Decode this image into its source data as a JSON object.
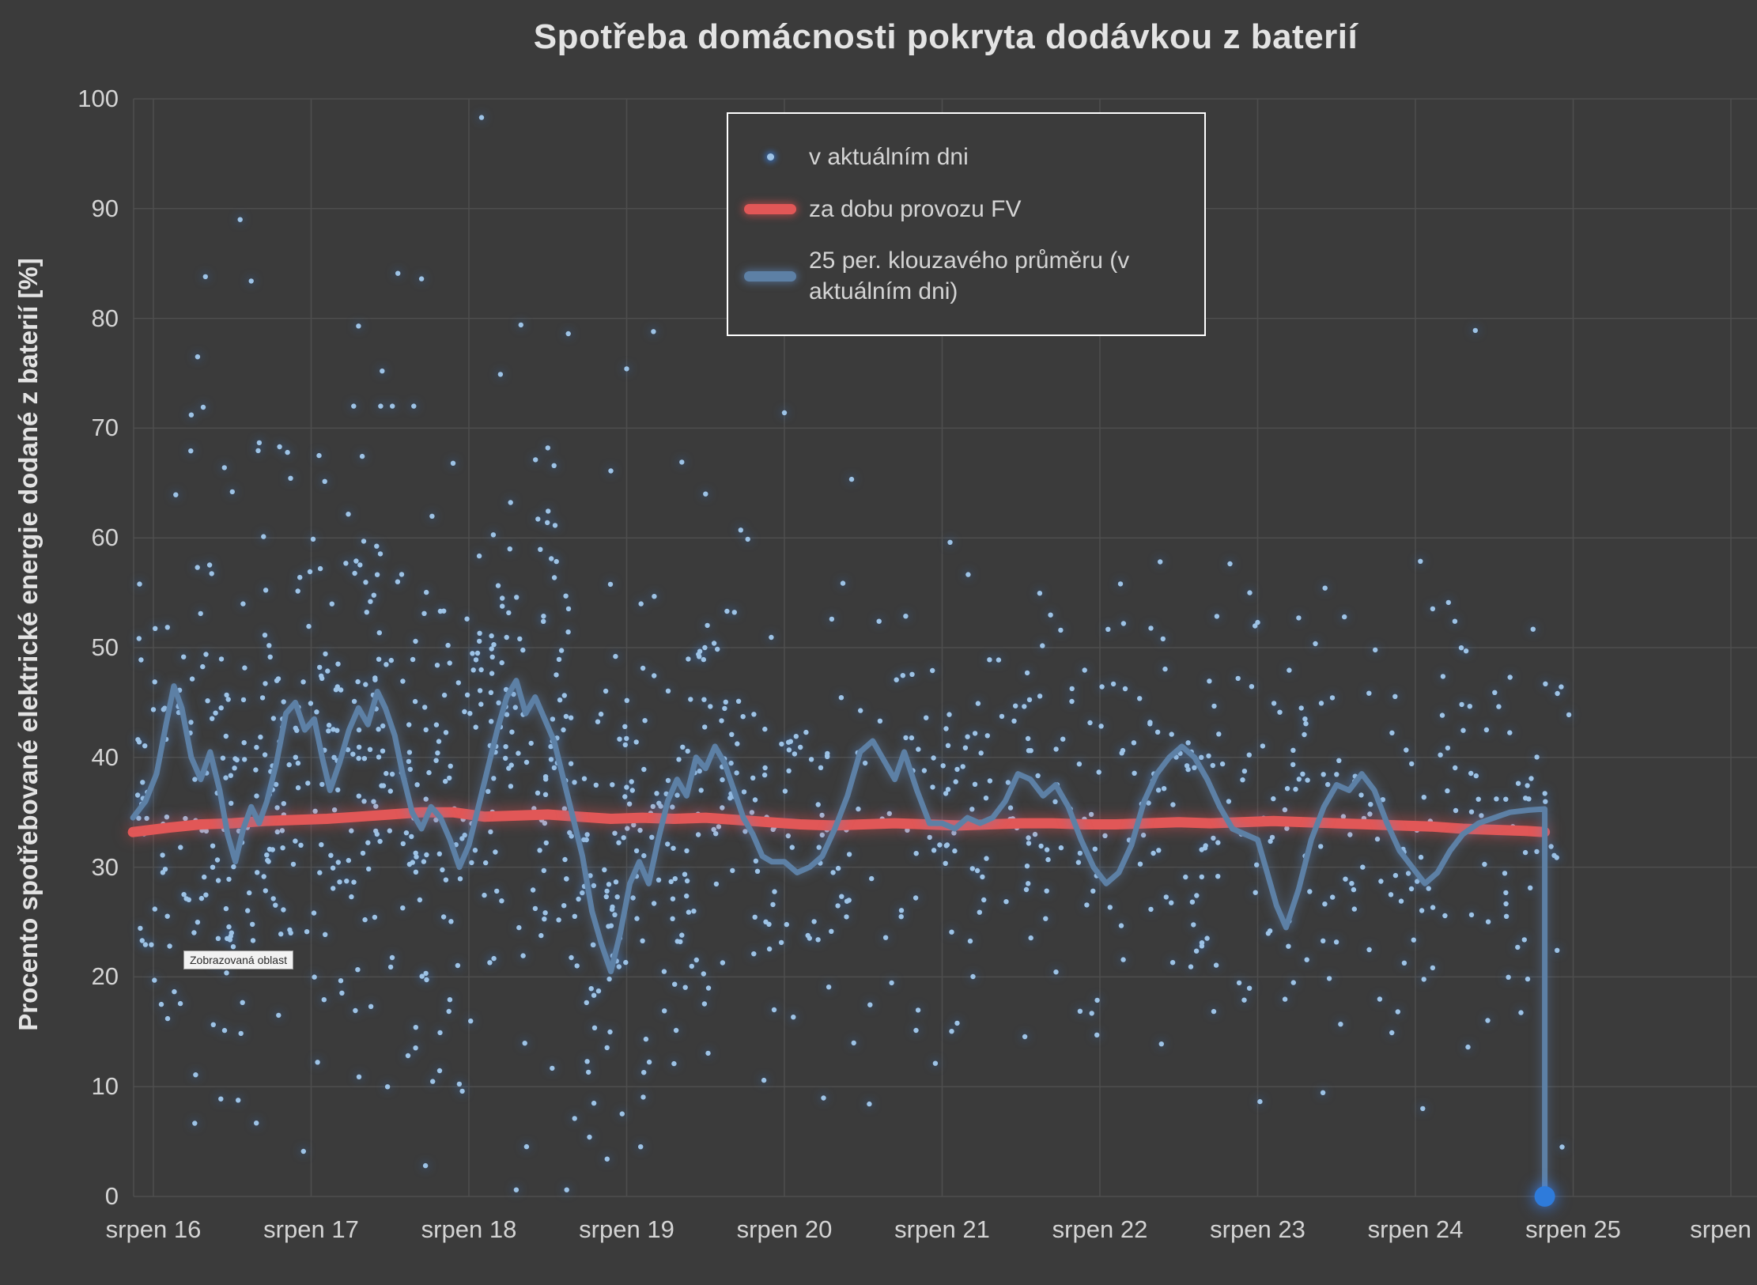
{
  "tooltip": {
    "label": "Zobrazovaná oblast"
  },
  "legend": {
    "position": "top-center",
    "items": [
      {
        "label": "v aktuálním dni",
        "marker": "dot"
      },
      {
        "label": "za dobu provozu FV",
        "marker": "thick-line"
      },
      {
        "label": "25 per. klouzavého průměru (v aktuálním dni)",
        "marker": "thick-line"
      }
    ]
  },
  "colors": {
    "background": "#3b3b3b",
    "grid": "#4e4e4e",
    "text": "#d4d4d4",
    "title": "#e3e3e3",
    "scatter": "#9dc3e6",
    "scatter_glow": "rgba(56,126,220,0.85)",
    "pv_avg": "#e15757",
    "pv_avg_glow": "rgba(228,80,80,0.6)",
    "moving_avg": "#5d80a5",
    "moving_avg_glow": "rgba(96,140,196,0.55)",
    "end_marker": "#2e7bdb",
    "end_marker_glow": "rgba(56,134,255,0.95)",
    "tooltip_bg": "#f2f2f2",
    "tooltip_text": "#2b2b2b",
    "legend_border": "#ffffff"
  },
  "chart_data": {
    "type": "scatter",
    "title": "Spotřeba domácnosti pokryta dodávkou z baterií",
    "ylabel": "Procento spotřebované elektrické energie dodané z baterií [%]",
    "xlabel": "",
    "ylim": [
      0,
      100
    ],
    "grid": true,
    "legend_position": "top-center",
    "y_ticks": [
      0,
      10,
      20,
      30,
      40,
      50,
      60,
      70,
      80,
      90,
      100
    ],
    "x_tick_labels": [
      "srpen 16",
      "srpen 17",
      "srpen 18",
      "srpen 19",
      "srpen 20",
      "srpen 21",
      "srpen 22",
      "srpen 23",
      "srpen 24",
      "srpen 25",
      "srpen 2"
    ],
    "x_domain_days": [
      15.87,
      26.15
    ],
    "series": {
      "scatter_current_day": {
        "name": "v aktuálním dni",
        "color": "#9dc3e6",
        "outlier_points": [
          [
            16.05,
            17.5
          ],
          [
            16.09,
            16.2
          ],
          [
            16.24,
            71.2
          ],
          [
            16.28,
            76.5
          ],
          [
            16.33,
            83.8
          ],
          [
            16.45,
            66.4
          ],
          [
            16.5,
            64.2
          ],
          [
            16.55,
            89.0
          ],
          [
            16.62,
            83.4
          ],
          [
            16.8,
            68.3
          ],
          [
            17.05,
            67.5
          ],
          [
            17.3,
            79.3
          ],
          [
            17.45,
            75.2
          ],
          [
            17.55,
            84.1
          ],
          [
            17.7,
            83.6
          ],
          [
            17.9,
            66.8
          ],
          [
            18.08,
            98.3
          ],
          [
            18.2,
            74.9
          ],
          [
            18.3,
            0.6
          ],
          [
            18.33,
            79.4
          ],
          [
            18.5,
            68.2
          ],
          [
            18.62,
            0.6
          ],
          [
            18.63,
            78.6
          ],
          [
            18.75,
            12.3
          ],
          [
            18.9,
            66.1
          ],
          [
            19.0,
            75.4
          ],
          [
            19.17,
            78.8
          ],
          [
            19.3,
            12.1
          ],
          [
            19.35,
            66.9
          ],
          [
            19.5,
            64.0
          ],
          [
            20.0,
            71.4
          ],
          [
            20.3,
            52.6
          ],
          [
            20.6,
            52.4
          ],
          [
            21.05,
            59.6
          ],
          [
            21.3,
            48.9
          ],
          [
            22.15,
            52.2
          ],
          [
            22.4,
            50.8
          ],
          [
            22.95,
            55.0
          ],
          [
            23.0,
            52.3
          ],
          [
            23.3,
            43.5
          ],
          [
            23.55,
            52.8
          ],
          [
            24.25,
            52.4
          ],
          [
            24.38,
            78.9
          ],
          [
            24.6,
            47.3
          ],
          [
            24.93,
            4.5
          ]
        ],
        "cluster_model": {
          "seed": 20230816,
          "value_clamp": [
            2,
            72
          ],
          "clusters": [
            {
              "from": 15.9,
              "to": 16.33,
              "count": 65,
              "mean": 38,
              "sd": 12
            },
            {
              "from": 16.33,
              "to": 16.66,
              "count": 65,
              "mean": 36,
              "sd": 13
            },
            {
              "from": 16.66,
              "to": 17.0,
              "count": 65,
              "mean": 40,
              "sd": 12
            },
            {
              "from": 17.0,
              "to": 17.33,
              "count": 65,
              "mean": 40,
              "sd": 12
            },
            {
              "from": 17.33,
              "to": 17.66,
              "count": 65,
              "mean": 38,
              "sd": 13
            },
            {
              "from": 17.66,
              "to": 18.0,
              "count": 60,
              "mean": 33,
              "sd": 12
            },
            {
              "from": 18.0,
              "to": 18.33,
              "count": 65,
              "mean": 40,
              "sd": 13
            },
            {
              "from": 18.33,
              "to": 18.66,
              "count": 65,
              "mean": 38,
              "sd": 13
            },
            {
              "from": 18.66,
              "to": 19.0,
              "count": 62,
              "mean": 27,
              "sd": 10
            },
            {
              "from": 19.0,
              "to": 19.4,
              "count": 62,
              "mean": 34,
              "sd": 12
            },
            {
              "from": 19.4,
              "to": 19.75,
              "count": 50,
              "mean": 38,
              "sd": 11
            },
            {
              "from": 19.75,
              "to": 20.1,
              "count": 40,
              "mean": 32,
              "sd": 9
            },
            {
              "from": 20.1,
              "to": 20.6,
              "count": 40,
              "mean": 35,
              "sd": 10
            },
            {
              "from": 20.6,
              "to": 21.1,
              "count": 45,
              "mean": 36,
              "sd": 9
            },
            {
              "from": 21.1,
              "to": 21.6,
              "count": 45,
              "mean": 36,
              "sd": 9
            },
            {
              "from": 21.6,
              "to": 22.1,
              "count": 42,
              "mean": 33,
              "sd": 9
            },
            {
              "from": 22.1,
              "to": 22.6,
              "count": 45,
              "mean": 37,
              "sd": 9
            },
            {
              "from": 22.6,
              "to": 23.1,
              "count": 45,
              "mean": 34,
              "sd": 10
            },
            {
              "from": 23.1,
              "to": 23.6,
              "count": 45,
              "mean": 33,
              "sd": 10
            },
            {
              "from": 23.6,
              "to": 24.1,
              "count": 42,
              "mean": 32,
              "sd": 9
            },
            {
              "from": 24.1,
              "to": 24.6,
              "count": 40,
              "mean": 34,
              "sd": 10
            },
            {
              "from": 24.6,
              "to": 25.0,
              "count": 25,
              "mean": 33,
              "sd": 9
            }
          ]
        }
      },
      "pv_lifetime_avg": {
        "name": "za dobu provozu FV",
        "color": "#e15757",
        "points": [
          [
            15.87,
            33.2
          ],
          [
            16.1,
            33.6
          ],
          [
            16.3,
            33.9
          ],
          [
            16.5,
            34.0
          ],
          [
            16.7,
            34.2
          ],
          [
            16.9,
            34.3
          ],
          [
            17.1,
            34.4
          ],
          [
            17.3,
            34.6
          ],
          [
            17.5,
            34.8
          ],
          [
            17.7,
            35.0
          ],
          [
            17.9,
            35.0
          ],
          [
            18.1,
            34.6
          ],
          [
            18.3,
            34.7
          ],
          [
            18.5,
            34.8
          ],
          [
            18.7,
            34.6
          ],
          [
            18.9,
            34.4
          ],
          [
            19.1,
            34.5
          ],
          [
            19.3,
            34.4
          ],
          [
            19.5,
            34.5
          ],
          [
            19.7,
            34.3
          ],
          [
            19.9,
            34.1
          ],
          [
            20.1,
            33.9
          ],
          [
            20.3,
            33.8
          ],
          [
            20.5,
            33.9
          ],
          [
            20.7,
            34.0
          ],
          [
            20.9,
            33.9
          ],
          [
            21.1,
            33.8
          ],
          [
            21.3,
            33.9
          ],
          [
            21.5,
            34.0
          ],
          [
            21.7,
            34.0
          ],
          [
            21.9,
            33.9
          ],
          [
            22.1,
            33.9
          ],
          [
            22.3,
            34.0
          ],
          [
            22.5,
            34.1
          ],
          [
            22.7,
            34.0
          ],
          [
            22.9,
            34.1
          ],
          [
            23.1,
            34.2
          ],
          [
            23.3,
            34.1
          ],
          [
            23.5,
            34.0
          ],
          [
            23.7,
            33.9
          ],
          [
            23.9,
            33.8
          ],
          [
            24.1,
            33.7
          ],
          [
            24.3,
            33.5
          ],
          [
            24.5,
            33.4
          ],
          [
            24.7,
            33.3
          ],
          [
            24.82,
            33.2
          ]
        ]
      },
      "moving_avg_25": {
        "name": "25 per. klouzavého průměru (v aktuálním dni)",
        "color": "#5d80a5",
        "points": [
          [
            15.87,
            34.5
          ],
          [
            15.95,
            36.0
          ],
          [
            16.02,
            38.5
          ],
          [
            16.08,
            43.0
          ],
          [
            16.13,
            46.5
          ],
          [
            16.18,
            44.5
          ],
          [
            16.24,
            40.0
          ],
          [
            16.3,
            38.0
          ],
          [
            16.36,
            40.5
          ],
          [
            16.42,
            37.0
          ],
          [
            16.47,
            33.0
          ],
          [
            16.52,
            30.5
          ],
          [
            16.57,
            33.5
          ],
          [
            16.62,
            35.5
          ],
          [
            16.67,
            34.0
          ],
          [
            16.72,
            36.0
          ],
          [
            16.78,
            39.5
          ],
          [
            16.84,
            44.0
          ],
          [
            16.9,
            45.0
          ],
          [
            16.96,
            42.5
          ],
          [
            17.02,
            43.5
          ],
          [
            17.07,
            40.0
          ],
          [
            17.12,
            37.0
          ],
          [
            17.18,
            39.5
          ],
          [
            17.24,
            42.5
          ],
          [
            17.3,
            44.5
          ],
          [
            17.36,
            43.0
          ],
          [
            17.42,
            46.0
          ],
          [
            17.47,
            44.5
          ],
          [
            17.53,
            42.0
          ],
          [
            17.58,
            38.5
          ],
          [
            17.64,
            35.0
          ],
          [
            17.7,
            33.5
          ],
          [
            17.76,
            35.5
          ],
          [
            17.82,
            34.5
          ],
          [
            17.88,
            32.5
          ],
          [
            17.94,
            30.0
          ],
          [
            18.0,
            32.0
          ],
          [
            18.06,
            35.5
          ],
          [
            18.12,
            39.0
          ],
          [
            18.18,
            42.5
          ],
          [
            18.24,
            45.5
          ],
          [
            18.3,
            47.0
          ],
          [
            18.36,
            44.0
          ],
          [
            18.42,
            45.5
          ],
          [
            18.48,
            43.5
          ],
          [
            18.54,
            41.5
          ],
          [
            18.6,
            38.0
          ],
          [
            18.66,
            34.5
          ],
          [
            18.72,
            31.0
          ],
          [
            18.78,
            26.0
          ],
          [
            18.84,
            23.0
          ],
          [
            18.9,
            20.5
          ],
          [
            18.96,
            24.0
          ],
          [
            19.02,
            28.5
          ],
          [
            19.08,
            30.5
          ],
          [
            19.14,
            28.5
          ],
          [
            19.2,
            32.5
          ],
          [
            19.26,
            36.0
          ],
          [
            19.32,
            38.0
          ],
          [
            19.38,
            36.5
          ],
          [
            19.44,
            40.0
          ],
          [
            19.5,
            39.0
          ],
          [
            19.56,
            41.0
          ],
          [
            19.62,
            39.5
          ],
          [
            19.68,
            37.0
          ],
          [
            19.74,
            34.5
          ],
          [
            19.8,
            33.0
          ],
          [
            19.86,
            31.0
          ],
          [
            19.92,
            30.5
          ],
          [
            20.0,
            30.5
          ],
          [
            20.08,
            29.5
          ],
          [
            20.16,
            30.0
          ],
          [
            20.24,
            31.0
          ],
          [
            20.32,
            33.5
          ],
          [
            20.4,
            36.5
          ],
          [
            20.48,
            40.5
          ],
          [
            20.56,
            41.5
          ],
          [
            20.64,
            39.5
          ],
          [
            20.7,
            38.0
          ],
          [
            20.76,
            40.5
          ],
          [
            20.84,
            37.0
          ],
          [
            20.92,
            34.0
          ],
          [
            21.0,
            34.0
          ],
          [
            21.08,
            33.5
          ],
          [
            21.16,
            34.5
          ],
          [
            21.24,
            34.0
          ],
          [
            21.32,
            34.5
          ],
          [
            21.4,
            36.0
          ],
          [
            21.48,
            38.5
          ],
          [
            21.56,
            38.0
          ],
          [
            21.64,
            36.5
          ],
          [
            21.72,
            37.5
          ],
          [
            21.8,
            35.5
          ],
          [
            21.88,
            32.5
          ],
          [
            21.96,
            30.0
          ],
          [
            22.04,
            28.5
          ],
          [
            22.12,
            29.5
          ],
          [
            22.2,
            32.0
          ],
          [
            22.28,
            36.0
          ],
          [
            22.36,
            38.5
          ],
          [
            22.44,
            40.0
          ],
          [
            22.52,
            41.0
          ],
          [
            22.6,
            40.0
          ],
          [
            22.68,
            38.0
          ],
          [
            22.76,
            35.5
          ],
          [
            22.84,
            33.5
          ],
          [
            22.92,
            33.0
          ],
          [
            23.0,
            32.5
          ],
          [
            23.06,
            29.5
          ],
          [
            23.12,
            26.5
          ],
          [
            23.18,
            24.5
          ],
          [
            23.26,
            28.0
          ],
          [
            23.34,
            32.5
          ],
          [
            23.42,
            35.5
          ],
          [
            23.5,
            37.5
          ],
          [
            23.58,
            37.0
          ],
          [
            23.66,
            38.5
          ],
          [
            23.74,
            37.0
          ],
          [
            23.82,
            34.0
          ],
          [
            23.9,
            31.5
          ],
          [
            23.98,
            30.0
          ],
          [
            24.06,
            28.5
          ],
          [
            24.14,
            29.5
          ],
          [
            24.22,
            31.5
          ],
          [
            24.3,
            33.0
          ],
          [
            24.4,
            34.0
          ],
          [
            24.5,
            34.5
          ],
          [
            24.6,
            35.0
          ],
          [
            24.72,
            35.2
          ],
          [
            24.82,
            35.3
          ],
          [
            24.82,
            0.0
          ]
        ],
        "end_marker": {
          "day": 24.82,
          "value": 0
        }
      }
    }
  }
}
